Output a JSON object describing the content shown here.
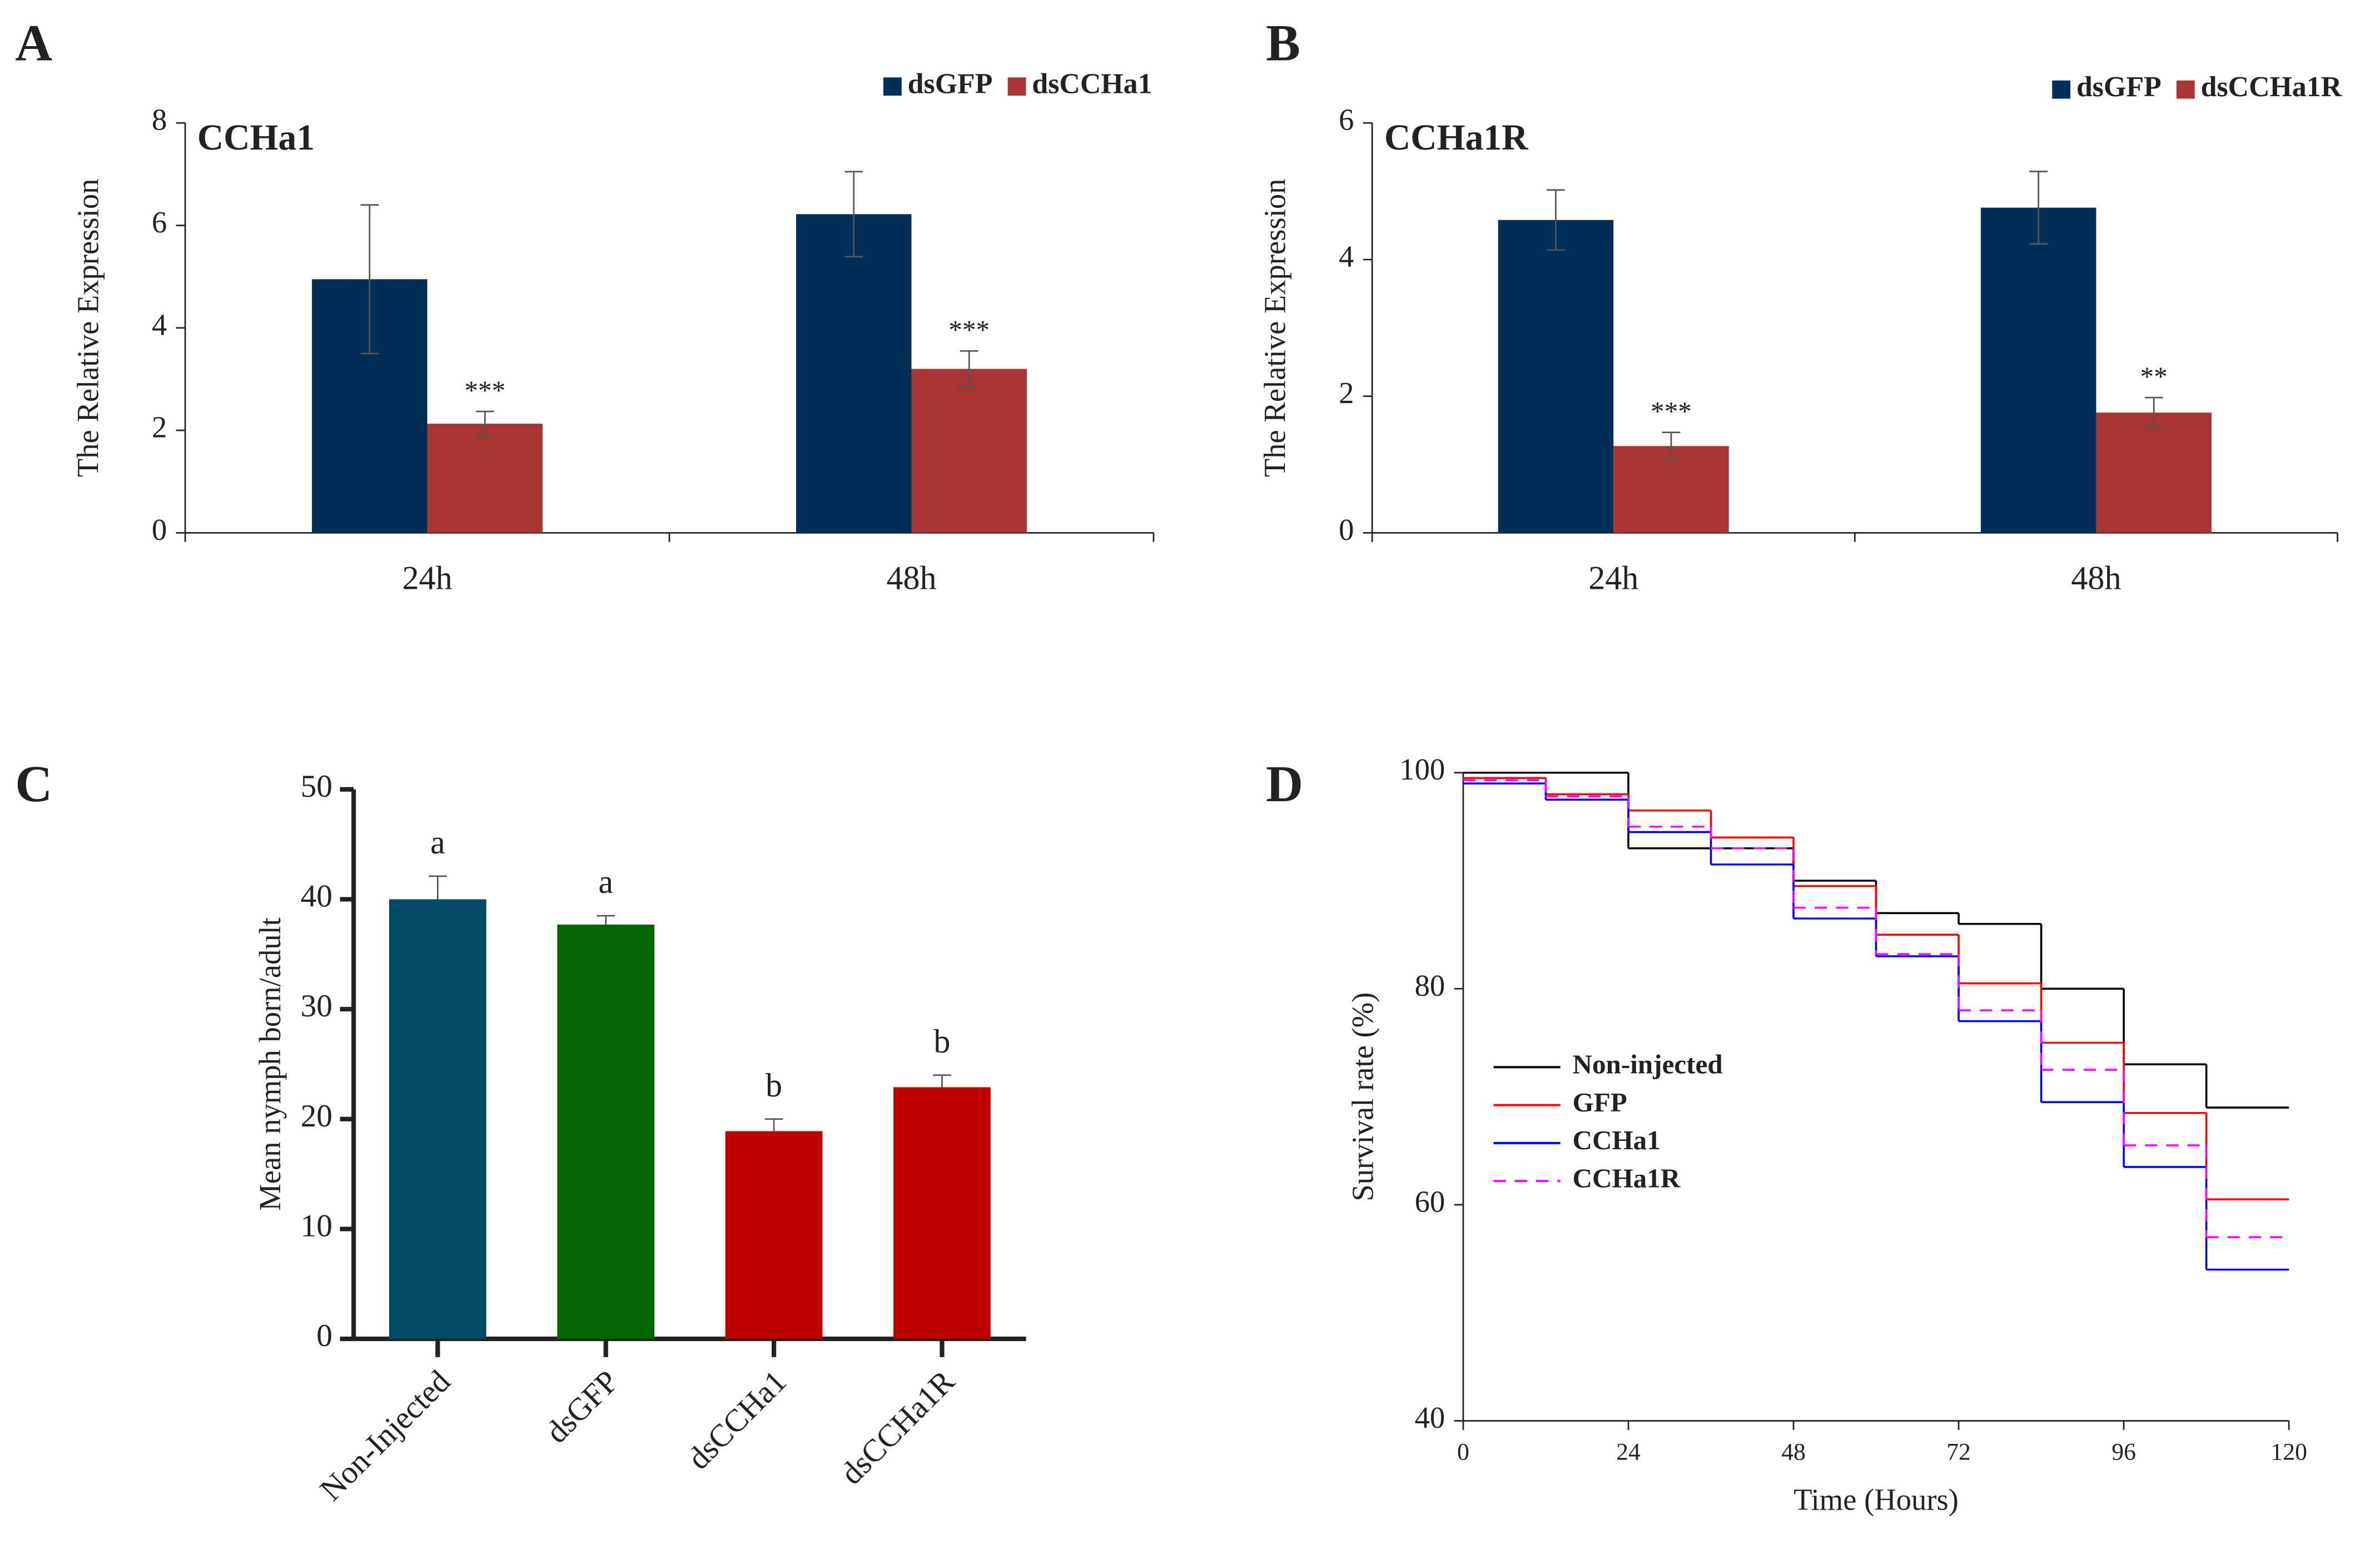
{
  "chart_data": [
    {
      "type": "bar",
      "panel": "A",
      "title": "CCHa1",
      "y_label": "The Relative Expression",
      "categories": [
        "24h",
        "48h"
      ],
      "series": [
        {
          "name": "dsGFP",
          "color": "#00305a",
          "values": [
            4.95,
            6.22
          ],
          "errors": [
            1.45,
            0.83
          ]
        },
        {
          "name": "dsCCHa1",
          "color": "#a83434",
          "values": [
            2.13,
            3.2
          ],
          "errors": [
            0.24,
            0.35
          ],
          "annotations": [
            "***",
            "***"
          ]
        }
      ],
      "ylim": [
        0,
        8
      ],
      "yticks": [
        0,
        2,
        4,
        6,
        8
      ]
    },
    {
      "type": "bar",
      "panel": "B",
      "title": "CCHa1R",
      "y_label": "The Relative Expression",
      "categories": [
        "24h",
        "48h"
      ],
      "series": [
        {
          "name": "dsGFP",
          "color": "#00305a",
          "values": [
            4.58,
            4.76
          ],
          "errors": [
            0.44,
            0.53
          ]
        },
        {
          "name": "dsCCHa1R",
          "color": "#a83434",
          "values": [
            1.27,
            1.76
          ],
          "errors": [
            0.2,
            0.22
          ],
          "annotations": [
            "***",
            "**"
          ]
        }
      ],
      "ylim": [
        0,
        6
      ],
      "yticks": [
        0,
        2,
        4,
        6
      ]
    },
    {
      "type": "bar",
      "panel": "C",
      "y_label": "Mean nymph born/adult",
      "categories": [
        "Non-Injected",
        "dsGFP",
        "dsCCHa1",
        "dsCCHa1R"
      ],
      "values": [
        40,
        37.7,
        18.9,
        22.9
      ],
      "errors": [
        2.1,
        0.8,
        1.1,
        1.1
      ],
      "annotations": [
        "a",
        "a",
        "b",
        "b"
      ],
      "colors": [
        "#004b66",
        "#006400",
        "#c00000",
        "#c00000"
      ],
      "ylim": [
        0,
        50
      ],
      "yticks": [
        0,
        10,
        20,
        30,
        40,
        50
      ]
    },
    {
      "type": "line",
      "panel": "D",
      "step": "post",
      "y_label": "Survival rate (%)",
      "x_label": "Time (Hours)",
      "x": [
        0,
        12,
        24,
        36,
        48,
        60,
        72,
        84,
        96,
        108
      ],
      "series": [
        {
          "name": "Non-injected",
          "color": "#000000",
          "values": [
            100,
            100,
            93,
            93,
            90,
            87,
            86,
            80,
            73,
            69
          ]
        },
        {
          "name": "GFP",
          "color": "#ff0000",
          "values": [
            99.5,
            98,
            96.5,
            94,
            89.5,
            85,
            80.5,
            75,
            68.5,
            60.5
          ]
        },
        {
          "name": "CCHa1",
          "color": "#0000ff",
          "values": [
            99,
            97.5,
            94.5,
            91.5,
            86.5,
            83,
            77,
            69.5,
            63.5,
            54
          ]
        },
        {
          "name": "CCHa1R",
          "color": "#ff00ff",
          "dashed": true,
          "values": [
            99.3,
            97.8,
            95,
            93,
            87.5,
            83.2,
            78,
            72.5,
            65.5,
            57
          ]
        }
      ],
      "xlim": [
        0,
        120
      ],
      "xticks": [
        0,
        24,
        48,
        72,
        96,
        120
      ],
      "ylim": [
        40,
        100
      ],
      "yticks": [
        40,
        60,
        80,
        100
      ]
    }
  ]
}
